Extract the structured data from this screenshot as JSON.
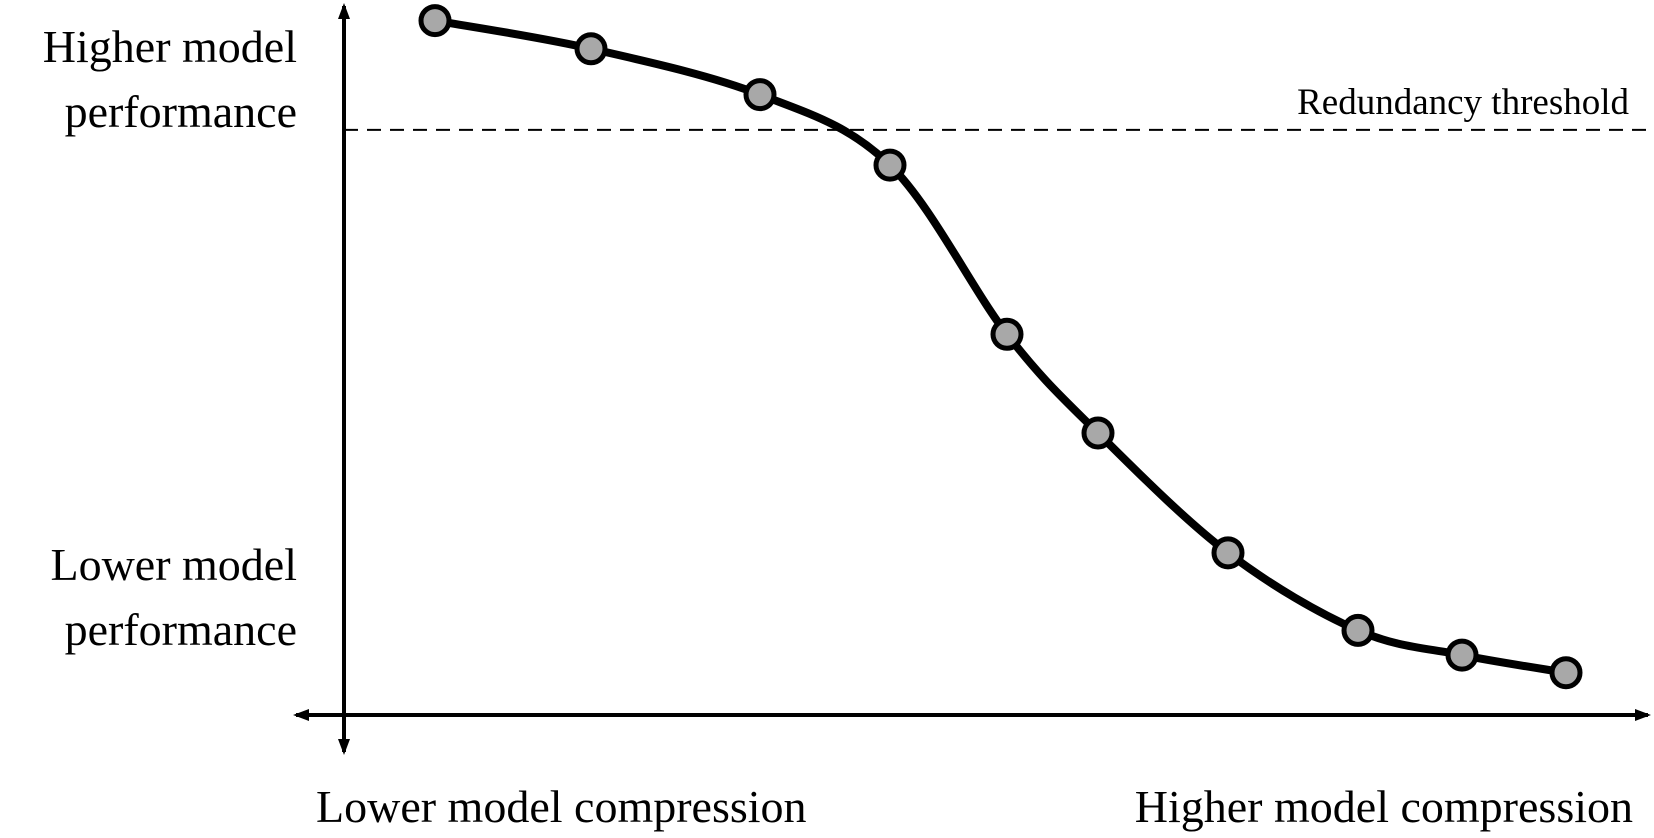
{
  "chart_data": {
    "type": "line",
    "title": "",
    "xlabel_low": "Lower model compression",
    "xlabel_high": "Higher model compression",
    "ylabel_high_line1": "Higher model",
    "ylabel_high_line2": "performance",
    "ylabel_low_line1": "Lower model",
    "ylabel_low_line2": "performance",
    "threshold_label": "Redundancy threshold",
    "threshold_value": 0.83,
    "xlim": [
      0,
      1
    ],
    "ylim": [
      0,
      1
    ],
    "grid": false,
    "colors": {
      "line": "#000000",
      "marker_fill": "#a8a8a8",
      "marker_stroke": "#000000"
    },
    "series": [
      {
        "x": [
          0.07,
          0.19,
          0.32,
          0.42,
          0.51,
          0.58,
          0.68,
          0.78,
          0.86,
          0.94
        ],
        "y": [
          0.985,
          0.945,
          0.88,
          0.78,
          0.54,
          0.4,
          0.23,
          0.12,
          0.085,
          0.06
        ]
      }
    ]
  }
}
